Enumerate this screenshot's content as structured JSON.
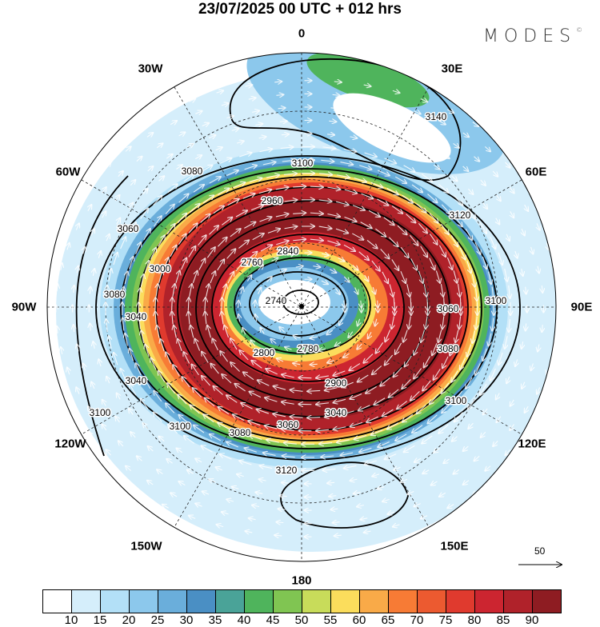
{
  "title": "23/07/2025  00 UTC  + 012 hrs",
  "logo": "MODES",
  "logo_mark": "©",
  "longitude_labels": [
    "0",
    "30E",
    "60E",
    "90E",
    "120E",
    "150E",
    "180",
    "150W",
    "120W",
    "90W",
    "60W",
    "30W"
  ],
  "contour_labels": [
    "3140",
    "3120",
    "3100",
    "3100",
    "3080",
    "3060",
    "3040",
    "3000",
    "2960",
    "2840",
    "2760",
    "2740",
    "2780",
    "2800",
    "2900",
    "3040",
    "3060",
    "3080",
    "3100",
    "3100",
    "3120",
    "3100",
    "3080",
    "3040",
    "3060",
    "3080"
  ],
  "vector_reference": "50",
  "colorbar": {
    "ticks": [
      "10",
      "15",
      "20",
      "25",
      "30",
      "35",
      "40",
      "45",
      "50",
      "55",
      "60",
      "65",
      "70",
      "75",
      "80",
      "85",
      "90"
    ],
    "colors": [
      "#ffffff",
      "#d5eefb",
      "#b3e0f7",
      "#8cc8ec",
      "#6aaedb",
      "#4a8fc4",
      "#4aa398",
      "#4fb45c",
      "#80c552",
      "#c8dc5a",
      "#fbdd5c",
      "#f9aa48",
      "#f77b35",
      "#ec5a30",
      "#e03a2e",
      "#cc2530",
      "#b0222a",
      "#8e1c22"
    ]
  }
}
